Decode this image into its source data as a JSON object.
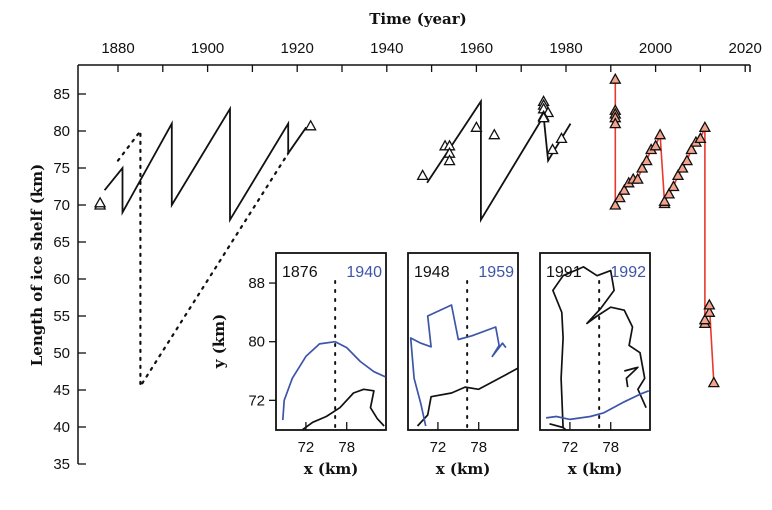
{
  "chart_data": {
    "type": "line",
    "title": "",
    "xlabel": "Time (year)",
    "ylabel": "Length of ice shelf (km)",
    "xlim": [
      1871,
      2021
    ],
    "ylim": [
      35,
      88
    ],
    "x_ticks": [
      1880,
      1900,
      1920,
      1940,
      1960,
      1980,
      2000,
      2020
    ],
    "y_ticks": [
      35,
      40,
      45,
      50,
      55,
      60,
      65,
      70,
      75,
      80,
      85
    ],
    "x_axis_position": "top",
    "grid": false,
    "colors": {
      "black": "#111111",
      "red": "#e8392c",
      "triangle_fill": "#f4a48c",
      "blue": "#3d55a8"
    },
    "series": [
      {
        "name": "model-solid-1",
        "style": "solid",
        "color": "#111111",
        "points": [
          [
            1877,
            72
          ],
          [
            1881,
            75
          ],
          [
            1881,
            69
          ],
          [
            1892,
            81
          ],
          [
            1892,
            70
          ],
          [
            1905,
            83
          ],
          [
            1905,
            68
          ],
          [
            1918,
            81
          ],
          [
            1918,
            77
          ],
          [
            1922,
            80.5
          ]
        ]
      },
      {
        "name": "model-dotted-1",
        "style": "dotted",
        "color": "#111111",
        "points": [
          [
            1880,
            76
          ],
          [
            1885,
            80
          ],
          [
            1885,
            45.5
          ],
          [
            1918,
            77
          ]
        ]
      },
      {
        "name": "model-solid-2",
        "style": "solid",
        "color": "#111111",
        "points": [
          [
            1949,
            73
          ],
          [
            1961,
            84
          ],
          [
            1961,
            68
          ],
          [
            1975,
            82
          ],
          [
            1976,
            76
          ],
          [
            1981,
            81
          ]
        ]
      },
      {
        "name": "observations-1",
        "style": "triangles",
        "color": "#111111",
        "points": [
          [
            1876,
            70
          ],
          [
            1876,
            70.3
          ],
          [
            1923,
            80.7
          ],
          [
            1948,
            74
          ],
          [
            1953,
            78
          ],
          [
            1954,
            78
          ],
          [
            1954,
            77
          ],
          [
            1954,
            76
          ],
          [
            1960,
            80.5
          ],
          [
            1964,
            79.5
          ],
          [
            1975,
            84
          ],
          [
            1975,
            83.5
          ],
          [
            1975,
            83
          ],
          [
            1976,
            82.5
          ],
          [
            1975,
            82
          ],
          [
            1975,
            81.8
          ],
          [
            1977,
            77.5
          ],
          [
            1979,
            79
          ]
        ]
      },
      {
        "name": "observations-recent",
        "style": "triangles-line",
        "color": "#e8392c",
        "points": [
          [
            1991,
            87
          ],
          [
            1991,
            82.8
          ],
          [
            1991,
            82.3
          ],
          [
            1991,
            81.8
          ],
          [
            1991,
            81
          ],
          [
            1991,
            70
          ],
          [
            1992,
            71
          ],
          [
            1993,
            72
          ],
          [
            1994,
            73
          ],
          [
            1995,
            73.5
          ],
          [
            1996,
            73.5
          ],
          [
            1997,
            75
          ],
          [
            1998,
            76
          ],
          [
            1999,
            77.5
          ],
          [
            2000,
            78
          ],
          [
            2001,
            79.5
          ],
          [
            2002,
            70.2
          ],
          [
            2002,
            70.5
          ],
          [
            2003,
            71.5
          ],
          [
            2004,
            72.5
          ],
          [
            2005,
            74
          ],
          [
            2006,
            75
          ],
          [
            2007,
            76
          ],
          [
            2008,
            77.5
          ],
          [
            2009,
            78.5
          ],
          [
            2010,
            79
          ],
          [
            2011,
            80.5
          ],
          [
            2011,
            54
          ],
          [
            2011,
            54.5
          ],
          [
            2012,
            55.5
          ],
          [
            2012,
            56.5
          ],
          [
            2013,
            46
          ]
        ]
      }
    ],
    "insets": [
      {
        "label_black": "1876",
        "label_blue": "1940",
        "x_ticks": [
          72,
          78
        ],
        "y_ticks": [
          88,
          80,
          72
        ],
        "xlabel": "x (km)",
        "ylabel": "y (km)",
        "blue": [
          [
            68.6,
            69.3
          ],
          [
            68.8,
            72
          ],
          [
            70,
            75
          ],
          [
            72,
            78
          ],
          [
            74,
            79.7
          ],
          [
            76.3,
            80
          ],
          [
            78,
            79.2
          ],
          [
            80,
            77.3
          ],
          [
            82,
            75.9
          ],
          [
            83.7,
            75.2
          ]
        ],
        "black": [
          [
            [
              71.5,
              68
            ],
            [
              73,
              69
            ],
            [
              75,
              69.8
            ],
            [
              77,
              71
            ],
            [
              79,
              73
            ],
            [
              80.5,
              73.5
            ],
            [
              82,
              73.3
            ],
            [
              81.5,
              71
            ],
            [
              82.5,
              69.5
            ],
            [
              83.5,
              68.5
            ]
          ]
        ]
      },
      {
        "label_black": "1948",
        "label_blue": "1959",
        "x_ticks": [
          72,
          78
        ],
        "y_ticks": [],
        "xlabel": "x (km)",
        "ylabel": "",
        "blue": [
          [
            70.2,
            68.5
          ],
          [
            69.5,
            71.5
          ],
          [
            68.5,
            75
          ],
          [
            68,
            80.5
          ],
          [
            69.5,
            79.8
          ],
          [
            71,
            79.3
          ],
          [
            70.5,
            83.5
          ],
          [
            74,
            85
          ],
          [
            75,
            80.3
          ],
          [
            77,
            80.8
          ],
          [
            80.5,
            82
          ],
          [
            81,
            79.5
          ],
          [
            80,
            78
          ],
          [
            81.5,
            79.8
          ],
          [
            82,
            79.2
          ]
        ],
        "black": [
          [
            [
              69,
              68.5
            ],
            [
              70.5,
              70
            ],
            [
              71,
              72.5
            ],
            [
              74,
              73
            ],
            [
              76,
              73.8
            ],
            [
              78,
              73.5
            ],
            [
              80,
              74.5
            ],
            [
              82,
              75.5
            ],
            [
              84,
              76.5
            ]
          ]
        ]
      },
      {
        "label_black": "1991",
        "label_blue": "1992",
        "x_ticks": [
          72,
          78
        ],
        "y_ticks": [],
        "xlabel": "x (km)",
        "ylabel": "",
        "blue": [
          [
            68.5,
            69.6
          ],
          [
            70,
            69.8
          ],
          [
            72,
            69.4
          ],
          [
            75,
            69.8
          ],
          [
            77,
            70.3
          ],
          [
            80,
            71.8
          ],
          [
            82.5,
            72.9
          ],
          [
            83.6,
            73.3
          ]
        ],
        "black": [
          [
            [
              71,
              68.2
            ],
            [
              70.7,
              75
            ],
            [
              71,
              80.5
            ],
            [
              70.8,
              84
            ],
            [
              69.5,
              87
            ],
            [
              71,
              89
            ],
            [
              74,
              90.2
            ],
            [
              76,
              89
            ],
            [
              78,
              89.7
            ],
            [
              78.5,
              87
            ],
            [
              76.5,
              84.5
            ],
            [
              74.5,
              82.5
            ],
            [
              76,
              83.5
            ],
            [
              78,
              84.7
            ],
            [
              80,
              84.3
            ],
            [
              81.2,
              82
            ],
            [
              80.7,
              79.5
            ],
            [
              82.3,
              78.5
            ],
            [
              83,
              75
            ],
            [
              82,
              73.5
            ],
            [
              83.2,
              71
            ]
          ],
          [
            [
              69,
              68.8
            ],
            [
              71,
              68.3
            ],
            [
              71.5,
              67.9
            ]
          ],
          [
            [
              80.5,
              73.8
            ],
            [
              80.3,
              75
            ],
            [
              82,
              76.5
            ],
            [
              80,
              76
            ]
          ]
        ]
      }
    ]
  }
}
